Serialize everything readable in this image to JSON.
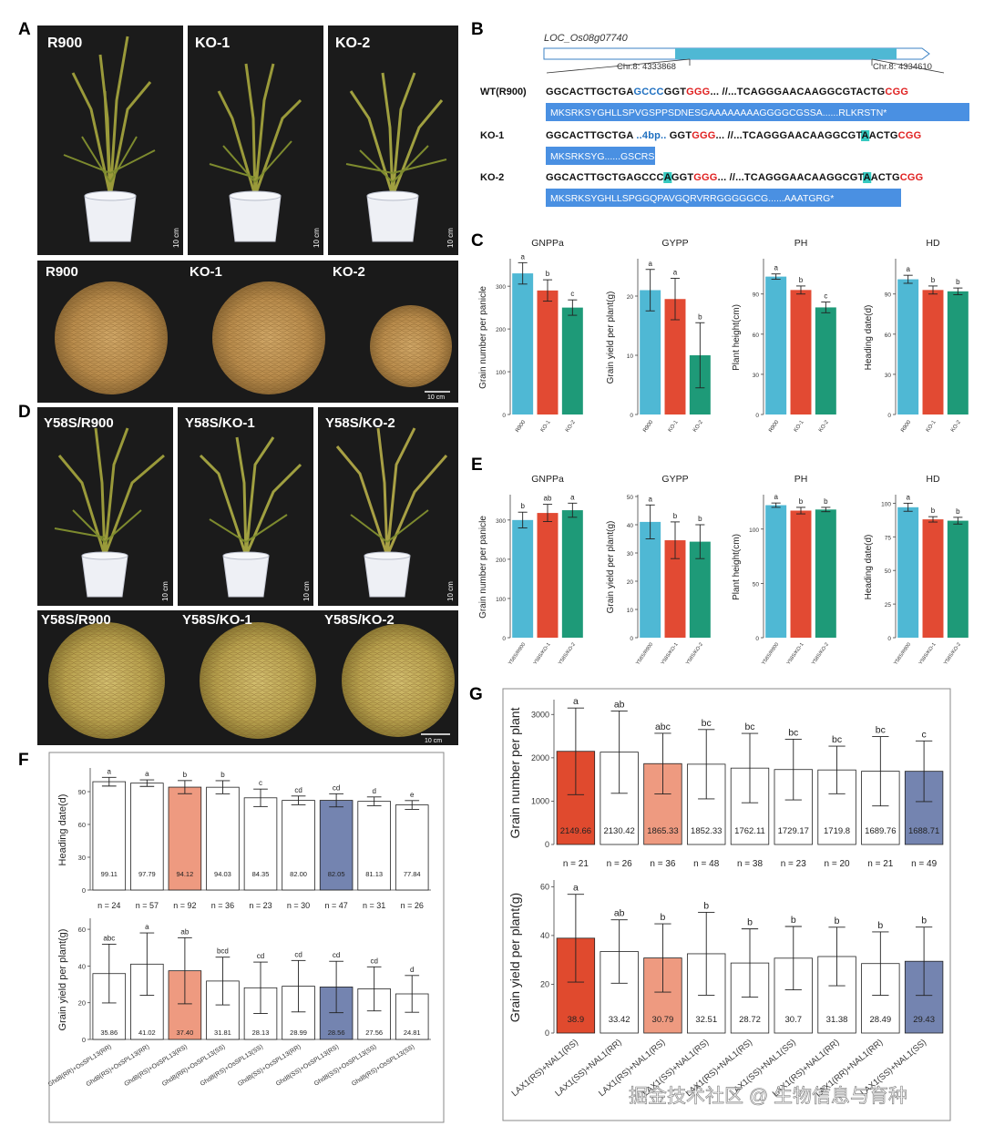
{
  "panel_letters": {
    "A": "A",
    "B": "B",
    "C": "C",
    "D": "D",
    "E": "E",
    "F": "F",
    "G": "G"
  },
  "panel_A": {
    "photos": [
      "R900",
      "KO-1",
      "KO-2"
    ],
    "grains": [
      "R900",
      "KO-1",
      "KO-2"
    ],
    "scale_plant": "10 cm",
    "scale_grain": "10 cm"
  },
  "panel_D": {
    "photos": [
      "Y58S/R900",
      "Y58S/KO-1",
      "Y58S/KO-2"
    ],
    "grains": [
      "Y58S/R900",
      "Y58S/KO-1",
      "Y58S/KO-2"
    ],
    "scale_plant": "10 cm",
    "scale_grain": "10 cm"
  },
  "panel_B": {
    "gene": "LOC_Os08g07740",
    "chr_left": "Chr.8: 4333868",
    "chr_right": "Chr.8: 4334610",
    "rows": [
      {
        "label": "WT(R900)",
        "dna": [
          [
            "GGCACTTGCTGA",
            "k"
          ],
          [
            "GCCC",
            "b"
          ],
          [
            "GGT",
            "k"
          ],
          [
            "GGG",
            "r"
          ],
          [
            "... //...TCAGGGAACAAGGCGTACTG",
            "k"
          ],
          [
            "CGG",
            "r"
          ]
        ],
        "protein": "MKSRKSYGHLLSPVGSPPSDNESGAAAAAAAAGGGGCGSSA......RLKRSTN*"
      },
      {
        "label": "KO-1",
        "dna": [
          [
            "GGCACTTGCTGA ",
            "k"
          ],
          [
            "..4bp..",
            "b"
          ],
          [
            " GGT",
            "k"
          ],
          [
            "GGG",
            "r"
          ],
          [
            "... //...TCAGGGAACAAGGCGT",
            "k"
          ],
          [
            "A",
            "h"
          ],
          [
            "ACTG",
            "k"
          ],
          [
            "CGG",
            "r"
          ]
        ],
        "protein": "MKSRKSYG......GSCRSRT*"
      },
      {
        "label": "KO-2",
        "dna": [
          [
            "GGCACTTGCTGAGCCC",
            "k"
          ],
          [
            "A",
            "h"
          ],
          [
            "GGT",
            "k"
          ],
          [
            "GGG",
            "r"
          ],
          [
            "... //...TCAGGGAACAAGGCGT",
            "k"
          ],
          [
            "A",
            "h"
          ],
          [
            "ACTG",
            "k"
          ],
          [
            "CGG",
            "r"
          ]
        ],
        "protein": "MKSRKSYGHLLSPGGQPAVGQRVRRGGGGGCG......AAATGRG*"
      }
    ]
  },
  "chart_data": [
    {
      "id": "C1",
      "type": "bar",
      "title": "GNPPa",
      "ylabel": "Grain number per panicle",
      "categories": [
        "R900",
        "KO-1",
        "KO-2"
      ],
      "values": [
        330,
        290,
        250
      ],
      "errors": [
        25,
        25,
        18
      ],
      "letters": [
        "a",
        "b",
        "c"
      ],
      "ylim": [
        0,
        360
      ],
      "ticks": [
        0,
        100,
        200,
        300
      ]
    },
    {
      "id": "C2",
      "type": "bar",
      "title": "GYPP",
      "ylabel": "Grain yield per plant(g)",
      "categories": [
        "R900",
        "KO-1",
        "KO-2"
      ],
      "values": [
        21,
        19.5,
        10
      ],
      "errors": [
        3.5,
        3.5,
        5.5
      ],
      "letters": [
        "a",
        "a",
        "b"
      ],
      "ylim": [
        0,
        26
      ],
      "ticks": [
        0,
        10,
        20
      ]
    },
    {
      "id": "C3",
      "type": "bar",
      "title": "PH",
      "ylabel": "Plant height(cm)",
      "categories": [
        "R900",
        "KO-1",
        "KO-2"
      ],
      "values": [
        103,
        93,
        80
      ],
      "errors": [
        2,
        3,
        4
      ],
      "letters": [
        "a",
        "b",
        "c"
      ],
      "ylim": [
        0,
        115
      ],
      "ticks": [
        0,
        30,
        60,
        90
      ]
    },
    {
      "id": "C4",
      "type": "bar",
      "title": "HD",
      "ylabel": "Heading date(d)",
      "categories": [
        "R900",
        "KO-1",
        "KO-2"
      ],
      "values": [
        101,
        93,
        92
      ],
      "errors": [
        3,
        3,
        2.5
      ],
      "letters": [
        "a",
        "b",
        "b"
      ],
      "ylim": [
        0,
        115
      ],
      "ticks": [
        0,
        30,
        60,
        90
      ]
    },
    {
      "id": "E1",
      "type": "bar",
      "title": "GNPPa",
      "ylabel": "Grain number per panicle",
      "categories": [
        "Y58S/R900",
        "Y58S/KO-1",
        "Y58S/KO-2"
      ],
      "values": [
        300,
        318,
        325
      ],
      "errors": [
        20,
        22,
        18
      ],
      "letters": [
        "b",
        "ab",
        "a"
      ],
      "ylim": [
        0,
        360
      ],
      "ticks": [
        0,
        100,
        200,
        300
      ]
    },
    {
      "id": "E2",
      "type": "bar",
      "title": "GYPP",
      "ylabel": "Grain yield per plant(g)",
      "categories": [
        "Y58S/R900",
        "Y58S/KO-1",
        "Y58S/KO-2"
      ],
      "values": [
        41,
        34.5,
        34
      ],
      "errors": [
        6,
        6.5,
        6
      ],
      "letters": [
        "a",
        "b",
        "b"
      ],
      "ylim": [
        0,
        50
      ],
      "ticks": [
        0,
        10,
        20,
        30,
        40,
        50
      ]
    },
    {
      "id": "E3",
      "type": "bar",
      "title": "PH",
      "ylabel": "Plant height(cm)",
      "categories": [
        "Y58S/R900",
        "Y58S/KO-1",
        "Y58S/KO-2"
      ],
      "values": [
        122,
        117,
        118
      ],
      "errors": [
        2,
        3,
        2
      ],
      "letters": [
        "a",
        "b",
        "b"
      ],
      "ylim": [
        0,
        130
      ],
      "ticks": [
        0,
        50,
        100
      ]
    },
    {
      "id": "E4",
      "type": "bar",
      "title": "HD",
      "ylabel": "Heading date(d)",
      "categories": [
        "Y58S/R900",
        "Y58S/KO-1",
        "Y58S/KO-2"
      ],
      "values": [
        97,
        88,
        87
      ],
      "errors": [
        3,
        2,
        2.5
      ],
      "letters": [
        "a",
        "b",
        "b"
      ],
      "ylim": [
        0,
        105
      ],
      "ticks": [
        0,
        25,
        50,
        75,
        100
      ]
    },
    {
      "id": "F1",
      "type": "bar",
      "ylabel": "Heading date(d)",
      "values": [
        99.11,
        97.79,
        94.12,
        94.03,
        84.35,
        82.0,
        82.05,
        81.13,
        77.84
      ],
      "labels": [
        "99.11",
        "97.79",
        "94.12",
        "94.03",
        "84.35",
        "82.00",
        "82.05",
        "81.13",
        "77.84"
      ],
      "errors": [
        4,
        3,
        6,
        6,
        8,
        4,
        6,
        4,
        4
      ],
      "letters": [
        "a",
        "a",
        "b",
        "b",
        "c",
        "cd",
        "cd",
        "d",
        "e"
      ],
      "n": [
        "n = 24",
        "n = 57",
        "n = 92",
        "n = 36",
        "n = 23",
        "n = 30",
        "n = 47",
        "n = 31",
        "n = 26"
      ],
      "ylim": [
        0,
        110
      ],
      "ticks": [
        0,
        30,
        60,
        90
      ]
    },
    {
      "id": "F2",
      "type": "bar",
      "ylabel": "Grain yield per plant(g)",
      "categories": [
        "Ghd8(RR)+OsSPL13(RR)",
        "Ghd8(RS)+OsSPL13(RR)",
        "Ghd8(RS)+OsSPL13(RS)",
        "Ghd8(RR)+OsSPL13(SS)",
        "Ghd8(RS)+OsSPL13(SS)",
        "Ghd8(SS)+OsSPL13(RR)",
        "Ghd8(SS)+OsSPL13(RS)",
        "Ghd8(SS)+OsSPL13(SS)",
        "Ghd8(RS)+OsSPL13(SS)"
      ],
      "values": [
        35.86,
        41.02,
        37.4,
        31.81,
        28.13,
        28.99,
        28.56,
        27.56,
        24.81
      ],
      "labels": [
        "35.86",
        "41.02",
        "37.40",
        "31.81",
        "28.13",
        "28.99",
        "28.56",
        "27.56",
        "24.81"
      ],
      "errors": [
        16,
        17,
        18,
        13,
        14,
        14,
        14,
        12,
        10
      ],
      "letters": [
        "abc",
        "a",
        "ab",
        "bcd",
        "cd",
        "cd",
        "cd",
        "cd",
        "d"
      ],
      "ylim": [
        0,
        65
      ],
      "ticks": [
        0,
        20,
        40,
        60
      ]
    },
    {
      "id": "G1",
      "type": "bar",
      "ylabel": "Grain number per plant",
      "values": [
        2149.66,
        2130.42,
        1865.33,
        1852.33,
        1762.11,
        1729.17,
        1719.8,
        1689.76,
        1688.71
      ],
      "labels": [
        "2149.66",
        "2130.42",
        "1865.33",
        "1852.33",
        "1762.11",
        "1729.17",
        "1719.8",
        "1689.76",
        "1688.71"
      ],
      "errors": [
        1000,
        950,
        700,
        800,
        800,
        700,
        550,
        800,
        700
      ],
      "letters": [
        "a",
        "ab",
        "abc",
        "bc",
        "bc",
        "bc",
        "bc",
        "bc",
        "c"
      ],
      "n": [
        "n = 21",
        "n = 26",
        "n = 36",
        "n = 48",
        "n = 38",
        "n = 23",
        "n = 20",
        "n = 21",
        "n = 49"
      ],
      "ylim": [
        0,
        3300
      ],
      "ticks": [
        0,
        1000,
        2000,
        3000
      ]
    },
    {
      "id": "G2",
      "type": "bar",
      "ylabel": "Grain yield per plant(g)",
      "categories": [
        "LAX1(RS)+NAL1(RS)",
        "LAX1(SS)+NAL1(RR)",
        "LAX1(RS)+NAL1(RS)",
        "LAX1(SS)+NAL1(RS)",
        "LAX1(RS)+NAL1(RS)",
        "LAX1(SS)+NAL1(SS)",
        "LAX1(RS)+NAL1(RR)",
        "LAX1(RR)+NAL1(RR)",
        "LAX1(SS)+NAL1(SS)"
      ],
      "values": [
        38.9,
        33.42,
        30.79,
        32.51,
        28.72,
        30.7,
        31.38,
        28.49,
        29.43
      ],
      "labels": [
        "38.9",
        "33.42",
        "30.79",
        "32.51",
        "28.72",
        "30.7",
        "31.38",
        "28.49",
        "29.43"
      ],
      "errors": [
        18,
        13,
        14,
        17,
        14,
        13,
        12,
        13,
        14
      ],
      "letters": [
        "a",
        "ab",
        "b",
        "b",
        "b",
        "b",
        "b",
        "b",
        "b"
      ],
      "ylim": [
        0,
        62
      ],
      "ticks": [
        0,
        20,
        40,
        60
      ]
    }
  ],
  "colors": {
    "blue": "#4fb8d4",
    "red": "#e24a33",
    "green": "#1e9a78",
    "salmon": "#ee9a80",
    "orange_red": "#e04a2e",
    "slate": "#7484b0",
    "seq_blue": "#1e6fc0",
    "seq_red": "#e02020",
    "hl": "#36c9c0",
    "protein_bg": "#4a90e2"
  },
  "watermark": "掘金技术社区 @ 生物信息与育种"
}
